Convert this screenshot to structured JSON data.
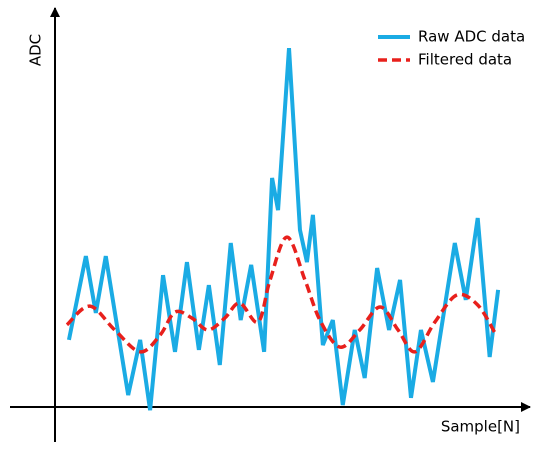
{
  "chart_data": {
    "type": "line",
    "xlabel": "Sample[N]",
    "ylabel": "ADC",
    "xlim": [
      0,
      95
    ],
    "ylim": [
      0,
      100
    ],
    "legend": "upper right",
    "series": [
      {
        "name": "Raw ADC data",
        "color": "#1aabe4",
        "style": "solid",
        "x": [
          2.8,
          6.2,
          8.2,
          10.2,
          14.7,
          17.1,
          19.1,
          21.7,
          24.1,
          26.5,
          28.9,
          30.9,
          33.1,
          35.3,
          37.3,
          39.4,
          42.0,
          43.6,
          44.8,
          47.0,
          49.2,
          50.6,
          51.8,
          53.8,
          55.8,
          57.8,
          60.2,
          62.2,
          64.7,
          67.1,
          69.3,
          71.5,
          73.5,
          75.9,
          80.3,
          82.5,
          84.9,
          87.3,
          89.0
        ],
        "values": [
          16.9,
          38.0,
          23.7,
          38.0,
          3.0,
          16.9,
          -0.8,
          33.2,
          13.9,
          36.5,
          14.4,
          30.7,
          10.6,
          41.3,
          21.9,
          35.8,
          13.9,
          57.7,
          49.6,
          90.4,
          44.6,
          36.5,
          48.4,
          15.6,
          21.9,
          0.5,
          19.4,
          7.3,
          35.0,
          19.4,
          32.0,
          2.3,
          19.4,
          6.3,
          41.3,
          27.0,
          47.6,
          12.6,
          29.5
        ]
      },
      {
        "name": "Filtered data",
        "color": "#e8201c",
        "style": "dashed",
        "x": [
          2.4,
          7.0,
          12.0,
          17.1,
          21.1,
          24.1,
          27.5,
          30.7,
          34.1,
          37.1,
          40.8,
          43.2,
          46.6,
          50.2,
          53.2,
          57.2,
          61.2,
          65.3,
          68.9,
          72.3,
          76.3,
          80.7,
          84.9,
          88.4
        ],
        "values": [
          20.7,
          25.4,
          19.4,
          13.9,
          18.1,
          23.9,
          22.4,
          19.4,
          22.4,
          26.2,
          21.4,
          32.0,
          42.8,
          32.0,
          21.9,
          15.1,
          19.4,
          25.2,
          19.4,
          13.9,
          21.4,
          28.2,
          25.7,
          18.6
        ]
      }
    ]
  }
}
